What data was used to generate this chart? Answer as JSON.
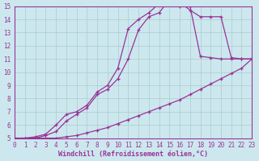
{
  "bg_color": "#cce8ee",
  "grid_color": "#aacccc",
  "line_color": "#993399",
  "xlabel": "Windchill (Refroidissement éolien,°C)",
  "xlim": [
    0,
    23
  ],
  "ylim": [
    5,
    15
  ],
  "xticks": [
    0,
    1,
    2,
    3,
    4,
    5,
    6,
    7,
    8,
    9,
    10,
    11,
    12,
    13,
    14,
    15,
    16,
    17,
    18,
    19,
    20,
    21,
    22,
    23
  ],
  "yticks": [
    5,
    6,
    7,
    8,
    9,
    10,
    11,
    12,
    13,
    14,
    15
  ],
  "line1_x": [
    0,
    1,
    2,
    3,
    4,
    5,
    6,
    7,
    8,
    9,
    10,
    11,
    12,
    13,
    14,
    15,
    16,
    17,
    18,
    19,
    20,
    21,
    22,
    23
  ],
  "line1_y": [
    5.0,
    5.0,
    5.0,
    5.0,
    5.0,
    5.1,
    5.2,
    5.4,
    5.6,
    5.8,
    6.1,
    6.4,
    6.7,
    7.0,
    7.3,
    7.6,
    7.9,
    8.3,
    8.7,
    9.1,
    9.5,
    9.9,
    10.3,
    11.0
  ],
  "line2_x": [
    0,
    1,
    2,
    3,
    4,
    5,
    6,
    7,
    8,
    9,
    10,
    11,
    12,
    13,
    14,
    15,
    16,
    17,
    18,
    19,
    20,
    21,
    22,
    23
  ],
  "line2_y": [
    5.0,
    5.0,
    5.0,
    5.2,
    5.5,
    6.3,
    6.8,
    7.3,
    8.3,
    8.7,
    9.5,
    11.0,
    13.2,
    14.2,
    14.5,
    15.5,
    15.3,
    14.7,
    14.2,
    14.2,
    14.2,
    11.1,
    11.0,
    11.0
  ],
  "line3_x": [
    0,
    1,
    2,
    3,
    4,
    5,
    6,
    7,
    8,
    9,
    10,
    11,
    12,
    13,
    14,
    15,
    16,
    17,
    18,
    19,
    20,
    21,
    22,
    23
  ],
  "line3_y": [
    5.0,
    5.0,
    5.1,
    5.3,
    6.0,
    6.8,
    7.0,
    7.5,
    8.5,
    9.0,
    10.3,
    13.3,
    14.0,
    14.5,
    15.2,
    15.5,
    15.0,
    15.0,
    11.2,
    11.1,
    11.0,
    11.0,
    11.0,
    11.0
  ]
}
